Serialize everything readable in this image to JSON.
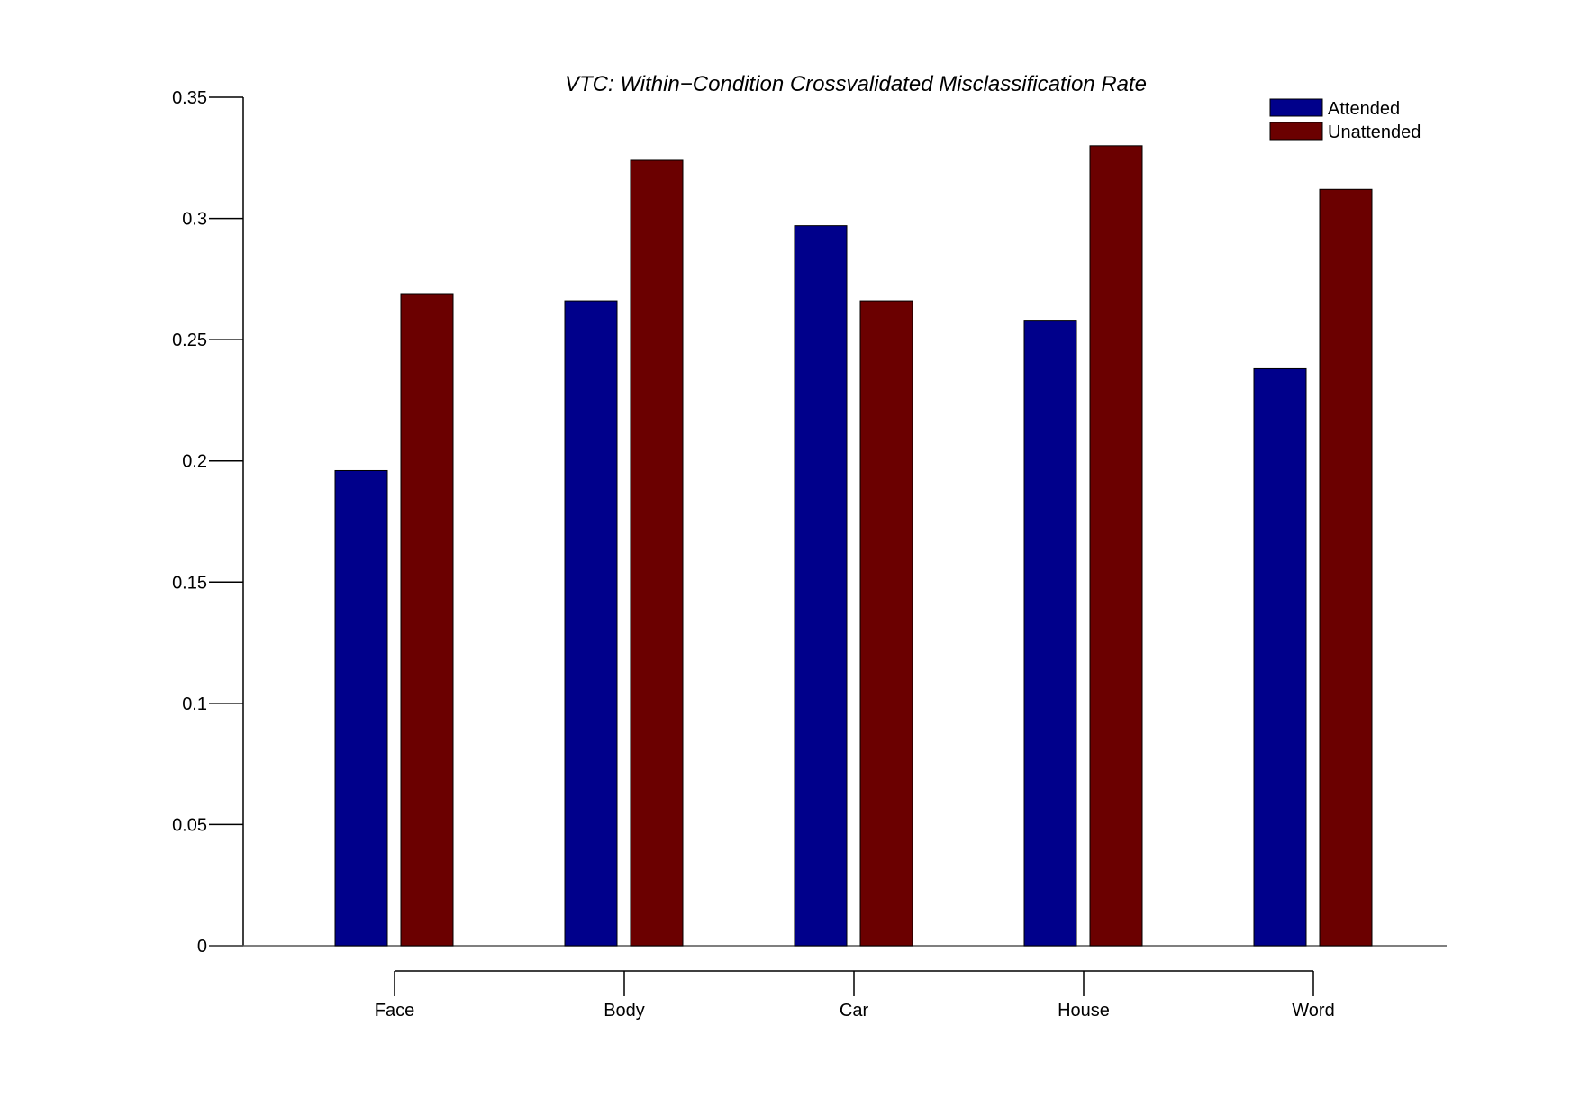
{
  "chart_data": {
    "type": "bar",
    "title": "VTC: Within−Condition Crossvalidated Misclassification Rate",
    "xlabel": "",
    "ylabel": "",
    "categories": [
      "Face",
      "Body",
      "Car",
      "House",
      "Word"
    ],
    "series": [
      {
        "name": "Attended",
        "color": "#00008B",
        "values": [
          0.196,
          0.266,
          0.297,
          0.258,
          0.238
        ]
      },
      {
        "name": "Unattended",
        "color": "#6B0000",
        "values": [
          0.269,
          0.324,
          0.266,
          0.33,
          0.312
        ]
      }
    ],
    "ylim": [
      0,
      0.35
    ],
    "yticks": [
      "0",
      "0.05",
      "0.1",
      "0.15",
      "0.2",
      "0.25",
      "0.3",
      "0.35"
    ],
    "grid": false,
    "legend_position": "top-right"
  }
}
